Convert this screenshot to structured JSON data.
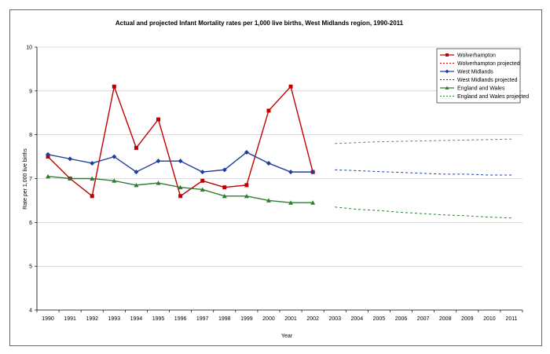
{
  "chart_data": {
    "type": "line",
    "title": "Actual and projected Infant Mortality rates per 1,000 live births, West Midlands region, 1990-2011",
    "xlabel": "Year",
    "ylabel": "Rate per 1,000 live births",
    "ylim": [
      4,
      10
    ],
    "yticks": [
      "4",
      "5",
      "6",
      "7",
      "8",
      "9",
      "10"
    ],
    "categories": [
      "1990",
      "1991",
      "1992",
      "1993",
      "1994",
      "1995",
      "1996",
      "1997",
      "1998",
      "1999",
      "2000",
      "2001",
      "2002",
      "2003",
      "2004",
      "2005",
      "2006",
      "2007",
      "2008",
      "2009",
      "2010",
      "2011"
    ],
    "grid": true,
    "legend_position": "top-right",
    "series": [
      {
        "name": "Wolverhampton",
        "color": "#c00000",
        "marker": "square",
        "style": "solid",
        "values": [
          7.5,
          7.0,
          6.6,
          9.1,
          7.7,
          8.35,
          6.6,
          6.95,
          6.8,
          6.85,
          8.55,
          9.1,
          7.15,
          null,
          null,
          null,
          null,
          null,
          null,
          null,
          null,
          null
        ]
      },
      {
        "name": "Wolverhampton projected",
        "color": "#c00000",
        "marker": "none",
        "style": "dashed",
        "values": [
          null,
          null,
          null,
          null,
          null,
          null,
          null,
          null,
          null,
          null,
          null,
          null,
          null,
          null,
          null,
          null,
          null,
          null,
          null,
          null,
          null,
          null
        ]
      },
      {
        "name": "West Midlands",
        "color": "#1f3d9a",
        "marker": "diamond",
        "style": "solid",
        "values": [
          7.55,
          7.45,
          7.35,
          7.5,
          7.15,
          7.4,
          7.4,
          7.15,
          7.2,
          7.6,
          7.35,
          7.15,
          7.15,
          null,
          null,
          null,
          null,
          null,
          null,
          null,
          null,
          null
        ]
      },
      {
        "name": "West Midlands projected",
        "color": "#1f3d9a",
        "marker": "none",
        "style": "dashed",
        "values": [
          null,
          null,
          null,
          null,
          null,
          null,
          null,
          null,
          null,
          null,
          null,
          null,
          null,
          7.2,
          7.18,
          7.16,
          7.14,
          7.12,
          7.1,
          7.1,
          7.08,
          7.08
        ]
      },
      {
        "name": "England and Wales",
        "color": "#2e7d32",
        "marker": "triangle",
        "style": "solid",
        "values": [
          7.05,
          7.0,
          7.0,
          6.95,
          6.85,
          6.9,
          6.8,
          6.75,
          6.6,
          6.6,
          6.5,
          6.45,
          6.45,
          null,
          null,
          null,
          null,
          null,
          null,
          null,
          null,
          null
        ]
      },
      {
        "name": "England and Wales projected",
        "color": "#2e7d32",
        "marker": "none",
        "style": "dashed",
        "values": [
          null,
          null,
          null,
          null,
          null,
          null,
          null,
          null,
          null,
          null,
          null,
          null,
          null,
          6.35,
          6.3,
          6.27,
          6.23,
          6.2,
          6.17,
          6.15,
          6.12,
          6.1
        ]
      }
    ],
    "extra_projection": {
      "color": "#777777",
      "style": "dashed",
      "values": [
        null,
        null,
        null,
        null,
        null,
        null,
        null,
        null,
        null,
        null,
        null,
        null,
        null,
        7.8,
        7.82,
        7.84,
        7.85,
        7.86,
        7.87,
        7.88,
        7.89,
        7.9
      ]
    }
  }
}
